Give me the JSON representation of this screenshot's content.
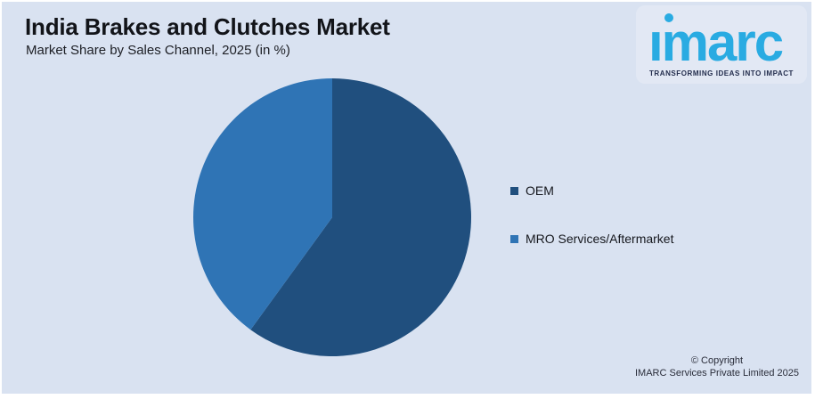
{
  "header": {
    "title": "India Brakes and Clutches Market",
    "subtitle": "Market Share by Sales Channel, 2025 (in %)"
  },
  "logo": {
    "wordmark": "ımarc",
    "tagline": "TRANSFORMING IDEAS INTO IMPACT",
    "brand_color": "#29ABE2",
    "tagline_color": "#232D4D"
  },
  "chart_data": {
    "type": "pie",
    "title": "India Brakes and Clutches Market",
    "subtitle": "Market Share by Sales Channel, 2025 (in %)",
    "labels": [
      "OEM",
      "MRO Services/Aftermarket"
    ],
    "values": [
      60,
      40
    ],
    "colors": [
      "#204F7E",
      "#2F74B5"
    ],
    "start_angle_deg": 0,
    "direction": "clockwise",
    "legend_position": "right",
    "data_labels_shown": false
  },
  "legend": {
    "items": [
      {
        "label": "OEM",
        "color": "#204F7E"
      },
      {
        "label": "MRO Services/Aftermarket",
        "color": "#2F74B5"
      }
    ]
  },
  "footer": {
    "copyright_line1": "© Copyright",
    "copyright_line2": "IMARC Services Private Limited 2025"
  },
  "colors": {
    "card_background": "#D9E2F1",
    "page_border": "#FFFFFF",
    "title_text": "#121419",
    "legend_text": "#15171d"
  }
}
